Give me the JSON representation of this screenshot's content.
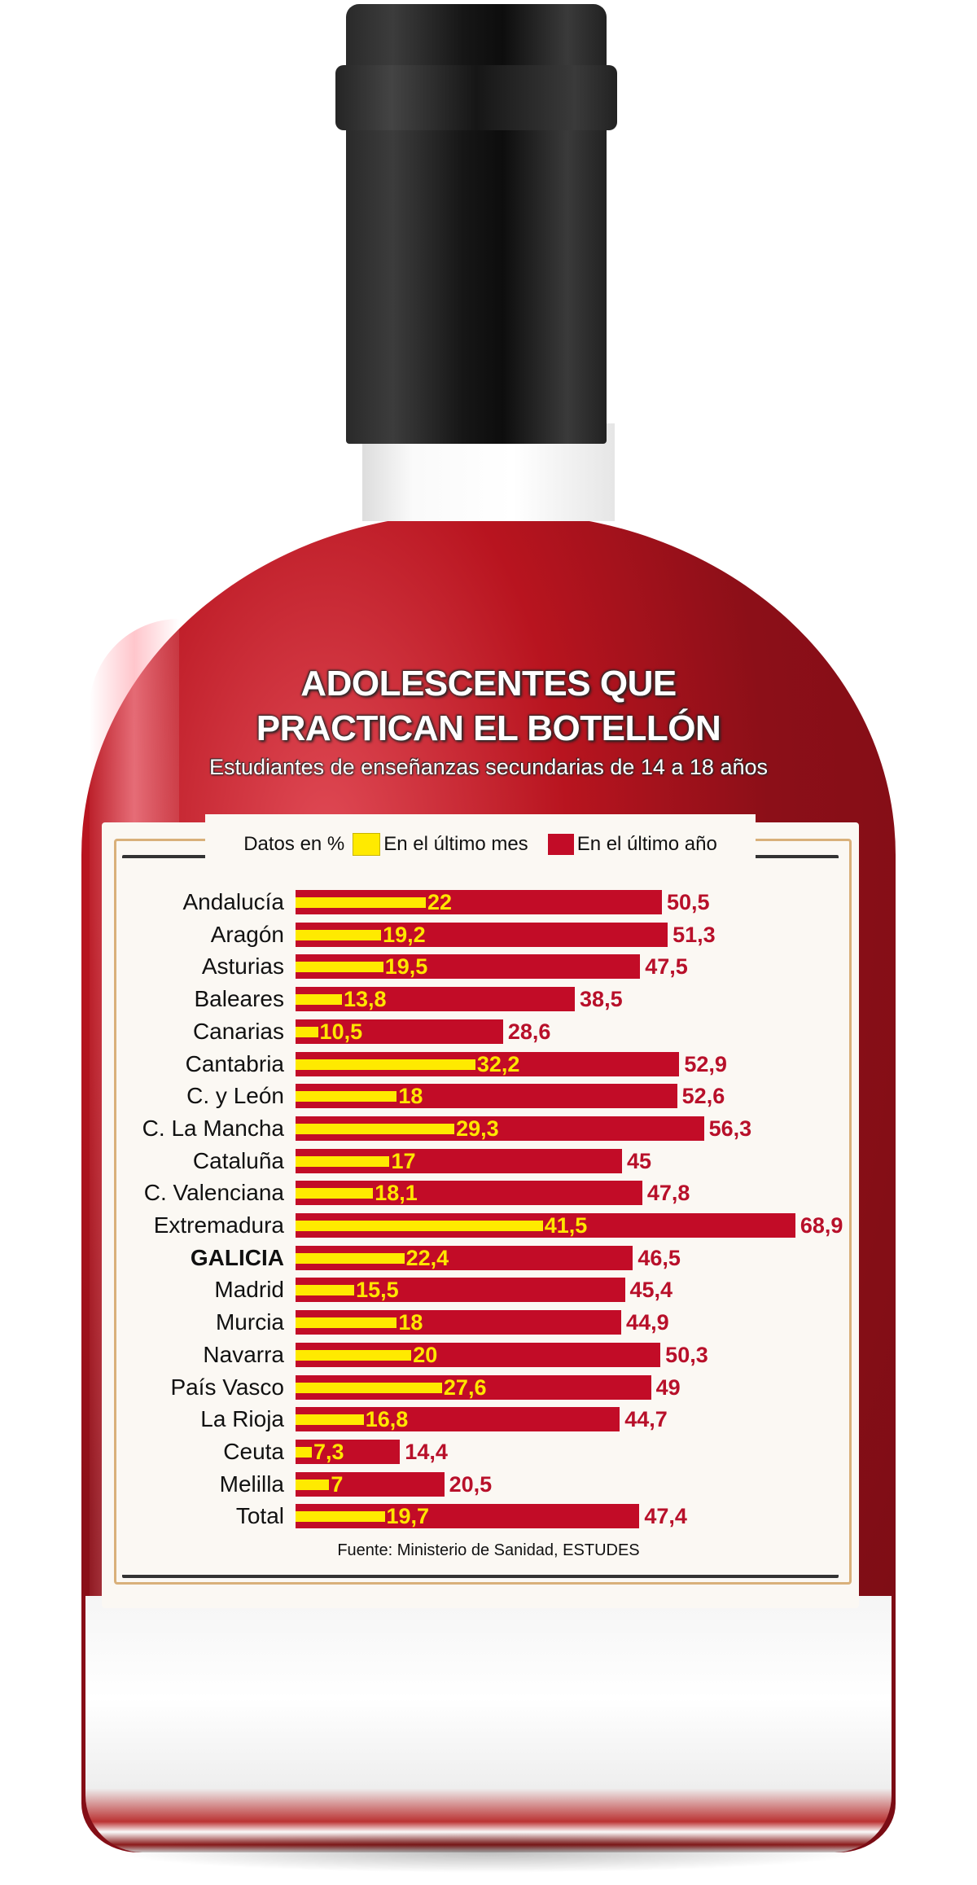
{
  "title_line1": "ADOLESCENTES QUE",
  "title_line2": "PRACTICAN EL BOTELLÓN",
  "subtitle": "Estudiantes de enseñanzas secundarias de 14 a 18 años",
  "legend": {
    "unit": "Datos en %",
    "series1": "En el último mes",
    "series2": "En el último año"
  },
  "source": "Fuente: Ministerio de Sanidad, ESTUDES",
  "colors": {
    "month": "#ffea00",
    "year": "#c20c27",
    "bottle_liquid": "#8c0f18",
    "cap": "#1a1a1a"
  },
  "rows": [
    {
      "name": "Andalucía",
      "month": "22",
      "year": "50,5"
    },
    {
      "name": "Aragón",
      "month": "19,2",
      "year": "51,3"
    },
    {
      "name": "Asturias",
      "month": "19,5",
      "year": "47,5"
    },
    {
      "name": "Baleares",
      "month": "13,8",
      "year": "38,5"
    },
    {
      "name": "Canarias",
      "month": "10,5",
      "year": "28,6"
    },
    {
      "name": "Cantabria",
      "month": "32,2",
      "year": "52,9"
    },
    {
      "name": "C. y León",
      "month": "18",
      "year": "52,6"
    },
    {
      "name": "C. La Mancha",
      "month": "29,3",
      "year": "56,3"
    },
    {
      "name": "Cataluña",
      "month": "17",
      "year": "45"
    },
    {
      "name": "C. Valenciana",
      "month": "18,1",
      "year": "47,8"
    },
    {
      "name": "Extremadura",
      "month": "41,5",
      "year": "68,9"
    },
    {
      "name": "GALICIA",
      "month": "22,4",
      "year": "46,5"
    },
    {
      "name": "Madrid",
      "month": "15,5",
      "year": "45,4"
    },
    {
      "name": "Murcia",
      "month": "18",
      "year": "44,9"
    },
    {
      "name": "Navarra",
      "month": "20",
      "year": "50,3"
    },
    {
      "name": "País Vasco",
      "month": "27,6",
      "year": "49"
    },
    {
      "name": "La Rioja",
      "month": "16,8",
      "year": "44,7"
    },
    {
      "name": "Ceuta",
      "month": "7,3",
      "year": "14,4"
    },
    {
      "name": "Melilla",
      "month": "7",
      "year": "20,5"
    },
    {
      "name": "Total",
      "month": "19,7",
      "year": "47,4"
    }
  ],
  "chart_data": {
    "type": "bar",
    "orientation": "horizontal",
    "title": "ADOLESCENTES QUE PRACTICAN EL BOTELLÓN",
    "subtitle": "Estudiantes de enseñanzas secundarias de 14 a 18 años",
    "xlabel": "Datos en %",
    "ylabel": "",
    "categories": [
      "Andalucía",
      "Aragón",
      "Asturias",
      "Baleares",
      "Canarias",
      "Cantabria",
      "C. y León",
      "C. La Mancha",
      "Cataluña",
      "C. Valenciana",
      "Extremadura",
      "GALICIA",
      "Madrid",
      "Murcia",
      "Navarra",
      "País Vasco",
      "La Rioja",
      "Ceuta",
      "Melilla",
      "Total"
    ],
    "series": [
      {
        "name": "En el último mes",
        "color": "#ffea00",
        "values": [
          22,
          19.2,
          19.5,
          13.8,
          10.5,
          32.2,
          18,
          29.3,
          17,
          18.1,
          41.5,
          22.4,
          15.5,
          18,
          20,
          27.6,
          16.8,
          7.3,
          7,
          19.7
        ]
      },
      {
        "name": "En el último año",
        "color": "#c20c27",
        "values": [
          50.5,
          51.3,
          47.5,
          38.5,
          28.6,
          52.9,
          52.6,
          56.3,
          45,
          47.8,
          68.9,
          46.5,
          45.4,
          44.9,
          50.3,
          49,
          44.7,
          14.4,
          20.5,
          47.4
        ]
      }
    ],
    "highlight": "GALICIA",
    "grid": false,
    "legend_position": "top",
    "xlim": [
      0,
      70
    ],
    "source": "Fuente: Ministerio de Sanidad, ESTUDES"
  }
}
